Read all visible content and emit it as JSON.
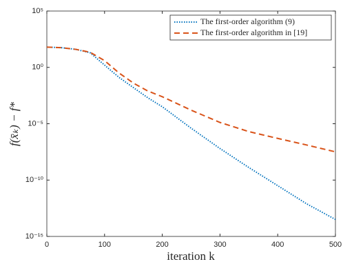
{
  "chart_data": {
    "type": "line",
    "xlabel": "iteration k",
    "ylabel": "f(x̄ₖ) − f*",
    "x": [
      0,
      25,
      50,
      75,
      100,
      125,
      150,
      175,
      200,
      250,
      300,
      350,
      400,
      450,
      500
    ],
    "series": [
      {
        "name": "The first-order algorithm (9)",
        "color": "#0072bd",
        "style": "dotted",
        "values": [
          63,
          56,
          40,
          20,
          1.6,
          0.13,
          0.016,
          0.002,
          0.00032,
          4e-06,
          6.3e-08,
          1.3e-09,
          3.2e-11,
          7.9e-13,
          3.2e-14
        ]
      },
      {
        "name": "The first-order algorithm in [19]",
        "color": "#d95319",
        "style": "dashed",
        "values": [
          63,
          56,
          40,
          22,
          4,
          0.32,
          0.04,
          0.008,
          0.0025,
          0.00016,
          1.3e-05,
          2e-06,
          5e-07,
          1.3e-07,
          3.2e-08
        ]
      }
    ],
    "xlim": [
      0,
      500
    ],
    "xticks": [
      0,
      100,
      200,
      300,
      400,
      500
    ],
    "ylim": [
      1e-15,
      100000
    ],
    "log_y": true,
    "yticks": [
      {
        "value": 1e-15,
        "label": "10⁻¹⁵"
      },
      {
        "value": 1e-10,
        "label": "10⁻¹⁰"
      },
      {
        "value": 1e-05,
        "label": "10⁻⁵"
      },
      {
        "value": 1,
        "label": "10⁰"
      },
      {
        "value": 100000,
        "label": "10⁵"
      }
    ],
    "legend": "upper right"
  }
}
